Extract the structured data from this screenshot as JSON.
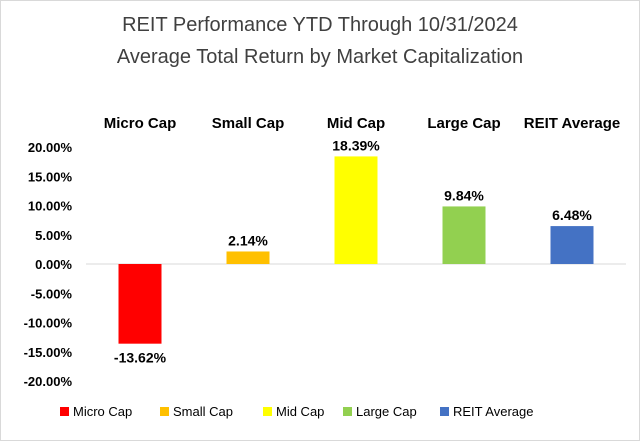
{
  "chart_data": {
    "type": "bar",
    "title": "REIT Performance YTD Through 10/31/2024",
    "subtitle": "Average Total Return by Market Capitalization",
    "categories": [
      "Micro Cap",
      "Small Cap",
      "Mid Cap",
      "Large Cap",
      "REIT Average"
    ],
    "values": [
      -13.62,
      2.14,
      18.39,
      9.84,
      6.48
    ],
    "data_labels": [
      "-13.62%",
      "2.14%",
      "18.39%",
      "9.84%",
      "6.48%"
    ],
    "colors": [
      "#ff0000",
      "#ffc000",
      "#ffff00",
      "#92d050",
      "#4472c4"
    ],
    "ylim": [
      -20,
      20
    ],
    "yticks": [
      20,
      15,
      10,
      5,
      0,
      -5,
      -10,
      -15,
      -20
    ],
    "ytick_labels": [
      "20.00%",
      "15.00%",
      "10.00%",
      "5.00%",
      "0.00%",
      "-5.00%",
      "-10.00%",
      "-15.00%",
      "-20.00%"
    ],
    "category_labels_position": "top",
    "grid": false,
    "legend": "bottom",
    "xlabel": "",
    "ylabel": ""
  }
}
